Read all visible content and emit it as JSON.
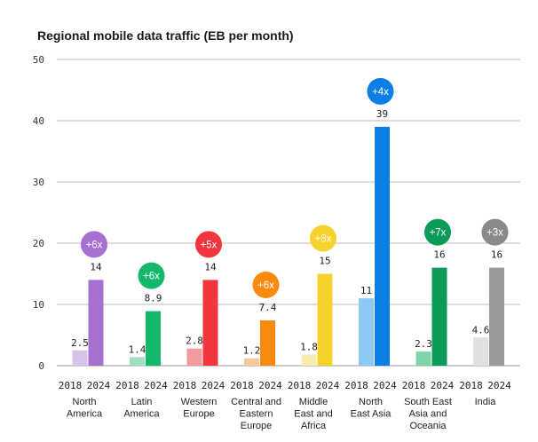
{
  "chart_data": {
    "type": "bar",
    "title": "Regional mobile data traffic (EB per month)",
    "xlabel": "",
    "ylabel": "",
    "ylim": [
      0,
      50
    ],
    "yticks": [
      0,
      10,
      20,
      30,
      40,
      50
    ],
    "gridlines": true,
    "series": [
      {
        "name": "2018",
        "values": [
          2.5,
          1.4,
          2.8,
          1.2,
          1.8,
          11,
          2.3,
          4.6
        ]
      },
      {
        "name": "2024",
        "values": [
          14,
          8.9,
          14,
          7.4,
          15,
          39,
          16,
          16
        ]
      }
    ],
    "regions": [
      {
        "name_lines": [
          "North",
          "America"
        ],
        "growth": "+6x",
        "color_2018": "#d7c2ec",
        "color_2024": "#a66fd0",
        "badge_color": "#a66fd0"
      },
      {
        "name_lines": [
          "Latin",
          "America"
        ],
        "growth": "+6x",
        "color_2018": "#9fe0c0",
        "color_2024": "#13b86b",
        "badge_color": "#13b86b"
      },
      {
        "name_lines": [
          "Western",
          "Europe"
        ],
        "growth": "+5x",
        "color_2018": "#f59a9a",
        "color_2024": "#f3363e",
        "badge_color": "#f3363e"
      },
      {
        "name_lines": [
          "Central and",
          "Eastern",
          "Europe"
        ],
        "growth": "+6x",
        "color_2018": "#f7c99a",
        "color_2024": "#f98a0d",
        "badge_color": "#f98a0d"
      },
      {
        "name_lines": [
          "Middle",
          "East and",
          "Africa"
        ],
        "growth": "+8x",
        "color_2018": "#f7ecb0",
        "color_2024": "#f8d22c",
        "badge_color": "#f8d22c"
      },
      {
        "name_lines": [
          "North",
          "East Asia"
        ],
        "growth": "+4x",
        "color_2018": "#8ec9f4",
        "color_2024": "#0d7ee6",
        "badge_color": "#0d7ee6"
      },
      {
        "name_lines": [
          "South East",
          "Asia and",
          "Oceania"
        ],
        "growth": "+7x",
        "color_2018": "#7fd4a9",
        "color_2024": "#0c9a57",
        "badge_color": "#0c9a57"
      },
      {
        "name_lines": [
          "India"
        ],
        "growth": "+3x",
        "color_2018": "#e0e0e0",
        "color_2024": "#9a9a9a",
        "badge_color": "#8a8a8a"
      }
    ]
  }
}
